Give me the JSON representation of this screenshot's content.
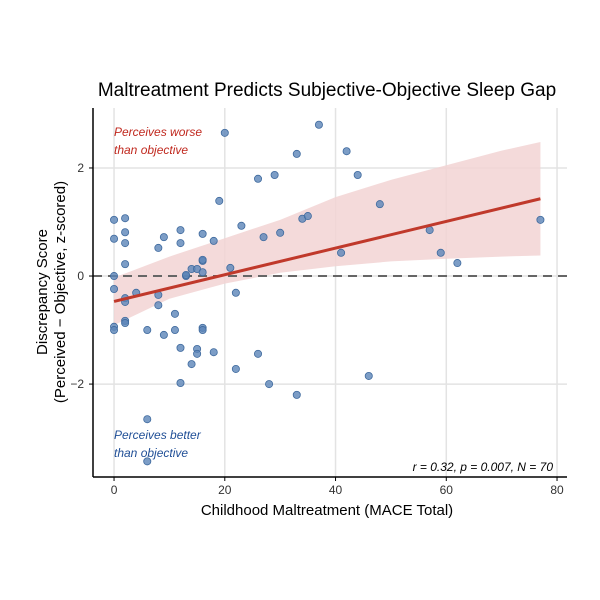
{
  "chart_data": {
    "type": "scatter",
    "title": "Maltreatment Predicts Subjective-Objective Sleep Gap",
    "xlabel": "Childhood Maltreatment (MACE Total)",
    "ylabel_line1": "Discrepancy Score",
    "ylabel_line2": "(Perceived − Objective, z-scored)",
    "xlim": [
      -3.8,
      81.8
    ],
    "ylim": [
      -3.72,
      3.11
    ],
    "xticks": [
      0,
      20,
      40,
      60,
      80
    ],
    "yticks": [
      -2,
      0,
      2
    ],
    "grid": true,
    "reference_line_y": 0,
    "annotations": {
      "top": [
        "Perceives worse",
        "than objective"
      ],
      "bottom": [
        "Perceives better",
        "than objective"
      ],
      "stats": "r = 0.32, p = 0.007, N = 70"
    },
    "colors": {
      "points": "#5b84b8",
      "fit": "#c0392b",
      "ci": "#f2d4d4",
      "top_note": "#c0281e",
      "bottom_note": "#1f4e96"
    },
    "points": [
      [
        0,
        1.04
      ],
      [
        0,
        0.69
      ],
      [
        0,
        0
      ],
      [
        0,
        -0.24
      ],
      [
        0,
        -0.94
      ],
      [
        0,
        -1.0
      ],
      [
        2,
        1.07
      ],
      [
        2,
        0.81
      ],
      [
        2,
        0.61
      ],
      [
        2,
        0.22
      ],
      [
        2,
        -0.41
      ],
      [
        2,
        -0.48
      ],
      [
        2,
        -0.83
      ],
      [
        2,
        -0.87
      ],
      [
        4,
        -0.31
      ],
      [
        6,
        -1.0
      ],
      [
        6,
        -2.65
      ],
      [
        6,
        -3.43
      ],
      [
        8,
        0.52
      ],
      [
        8,
        -0.35
      ],
      [
        8,
        -0.54
      ],
      [
        9,
        0.72
      ],
      [
        9,
        -1.09
      ],
      [
        11,
        -1.0
      ],
      [
        11,
        -0.7
      ],
      [
        12,
        0.85
      ],
      [
        12,
        0.61
      ],
      [
        12,
        -1.33
      ],
      [
        12,
        -1.98
      ],
      [
        13,
        0.0
      ],
      [
        14,
        0.13
      ],
      [
        14,
        -1.63
      ],
      [
        15,
        0.13
      ],
      [
        15,
        -1.35
      ],
      [
        15,
        -1.44
      ],
      [
        16,
        0.78
      ],
      [
        16,
        0.28
      ],
      [
        16,
        0.3
      ],
      [
        16,
        0.07
      ],
      [
        16,
        -0.96
      ],
      [
        16,
        -1.0
      ],
      [
        18,
        0.65
      ],
      [
        18,
        -1.41
      ],
      [
        19,
        1.39
      ],
      [
        20,
        2.65
      ],
      [
        21,
        0.15
      ],
      [
        22,
        -1.72
      ],
      [
        22,
        -0.31
      ],
      [
        23,
        0.93
      ],
      [
        26,
        1.8
      ],
      [
        26,
        -1.44
      ],
      [
        27,
        0.72
      ],
      [
        28,
        -2.0
      ],
      [
        29,
        1.87
      ],
      [
        30,
        0.8
      ],
      [
        33,
        2.26
      ],
      [
        33,
        -2.2
      ],
      [
        34,
        1.06
      ],
      [
        35,
        1.11
      ],
      [
        37,
        2.8
      ],
      [
        41,
        0.43
      ],
      [
        42,
        2.31
      ],
      [
        44,
        1.87
      ],
      [
        46,
        -1.85
      ],
      [
        48,
        1.33
      ],
      [
        57,
        0.85
      ],
      [
        59,
        0.43
      ],
      [
        62,
        0.24
      ],
      [
        77,
        1.04
      ],
      [
        13,
        0.02
      ]
    ],
    "fit": {
      "x": [
        0,
        77
      ],
      "y": [
        -0.47,
        1.43
      ]
    },
    "ci": {
      "x": [
        0,
        10,
        20,
        30,
        40,
        50,
        60,
        70,
        77
      ],
      "lower": [
        -0.91,
        -0.42,
        -0.14,
        0.06,
        0.18,
        0.27,
        0.32,
        0.36,
        0.38
      ],
      "upper": [
        -0.03,
        0.36,
        0.7,
        1.04,
        1.46,
        1.78,
        2.05,
        2.32,
        2.48
      ]
    }
  }
}
